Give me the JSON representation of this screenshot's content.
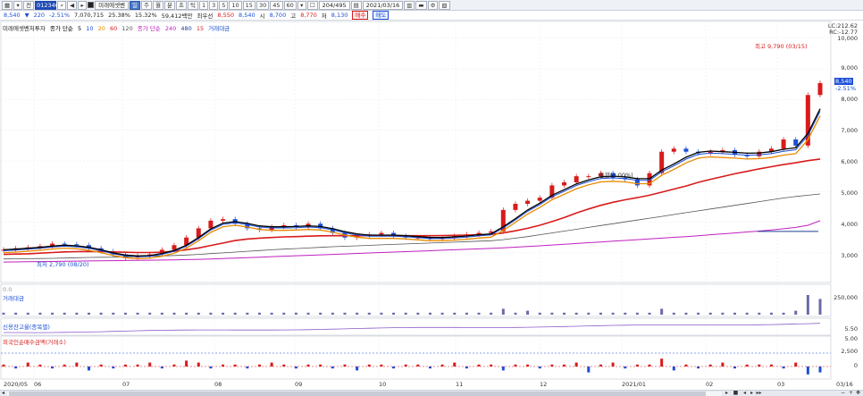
{
  "toolbar": {
    "code": "012340",
    "stock_name": "미래에셋벤",
    "periods": [
      "일",
      "주",
      "월",
      "분",
      "초",
      "틱"
    ],
    "minutes": [
      "1",
      "3",
      "5",
      "10",
      "15",
      "30",
      "45",
      "60"
    ],
    "count": "204/495",
    "date": "2021/03/16",
    "icons": [
      "grid-icon",
      "dropdown-icon",
      "arrow-icon",
      "search-icon",
      "settings-icon"
    ]
  },
  "info": {
    "price": "8,540",
    "change": "220",
    "change_pct": "-2.51%",
    "volume": "7,070,715",
    "ratio": "25.38%",
    "ratio2": "15.32%",
    "amount": "59,412백만",
    "basis": "최우선",
    "ask": "8,550",
    "bid": "8,540",
    "open_label": "시",
    "open": "8,700",
    "high_label": "고",
    "high": "8,770",
    "low_label": "저",
    "low": "8,130",
    "buy": "매수",
    "sell": "매도"
  },
  "legend_price": {
    "title": "미래에셋벤처투자",
    "ma_label": "종가 단순",
    "ma": [
      "5",
      "10",
      "20",
      "60",
      "120"
    ],
    "ma_colors": [
      "#000000",
      "#1c4fd8",
      "#e88a00",
      "#d81b1b",
      "#555555"
    ],
    "ma2_label": "종가 단순",
    "ma2": [
      "240",
      "480",
      "15"
    ],
    "ma2_colors": [
      "#c020c0",
      "#1c3f90",
      "#d81b1b"
    ],
    "vol_label": "거래대금"
  },
  "price_axis": {
    "labels": [
      "10,000",
      "9,000",
      "8,000",
      "7,000",
      "6,000",
      "5,000",
      "4,000",
      "3,000"
    ],
    "lc": "LC:212.62",
    "rc": "RC:-12.77",
    "current": "8,540",
    "current_pct": "-2.51%"
  },
  "annotations": {
    "high": "최고 9,790 (03/15)",
    "low": "최저 2,790 (08/20)",
    "event": "통합(0.00%)"
  },
  "panels": {
    "volume_tag": "0.0",
    "volume_title": "거래대금",
    "volume_axis": "250,000",
    "credit_title": "신용잔고율(종목별)",
    "credit_axis": [
      "5.50",
      "5.00"
    ],
    "foreign_title": "외국인순매수금액(거래소)",
    "foreign_axis": [
      "2,500",
      "0"
    ]
  },
  "dates": [
    "2020/05",
    "06",
    "07",
    "08",
    "09",
    "10",
    "11",
    "12",
    "2021/01",
    "02",
    "03",
    "03/16"
  ],
  "chart_data": {
    "type": "candlestick",
    "x_start": "2020/05",
    "x_end": "2021/03/16",
    "ylim": [
      2500,
      10200
    ],
    "close": [
      3100,
      3150,
      3180,
      3220,
      3300,
      3280,
      3250,
      3150,
      3050,
      2950,
      2850,
      2900,
      2950,
      3100,
      3250,
      3500,
      3800,
      4050,
      4100,
      3950,
      3800,
      3750,
      3850,
      3900,
      3850,
      3950,
      3800,
      3650,
      3500,
      3550,
      3600,
      3650,
      3550,
      3500,
      3500,
      3450,
      3500,
      3550,
      3600,
      3650,
      3700,
      4400,
      4600,
      4700,
      4800,
      5200,
      5300,
      5500,
      5500,
      5600,
      5450,
      5400,
      5200,
      5600,
      6300,
      6400,
      6300,
      6250,
      6300,
      6350,
      6200,
      6150,
      6300,
      6400,
      6700,
      6500,
      8150,
      8540
    ],
    "ma_black": [
      3100,
      3120,
      3150,
      3180,
      3220,
      3250,
      3230,
      3180,
      3100,
      3000,
      2930,
      2900,
      2910,
      2980,
      3080,
      3250,
      3500,
      3780,
      3970,
      4020,
      3960,
      3880,
      3850,
      3850,
      3860,
      3880,
      3860,
      3790,
      3690,
      3620,
      3580,
      3580,
      3580,
      3560,
      3530,
      3500,
      3500,
      3520,
      3550,
      3590,
      3620,
      3850,
      4120,
      4400,
      4620,
      4880,
      5060,
      5250,
      5380,
      5480,
      5500,
      5480,
      5420,
      5420,
      5700,
      5900,
      6120,
      6280,
      6320,
      6300,
      6280,
      6250,
      6260,
      6300,
      6380,
      6430,
      6900,
      7700
    ],
    "ma_red": [
      2950,
      2960,
      2970,
      2990,
      3010,
      3030,
      3040,
      3045,
      3040,
      3030,
      3020,
      3010,
      3010,
      3020,
      3050,
      3100,
      3160,
      3240,
      3320,
      3400,
      3450,
      3480,
      3500,
      3520,
      3530,
      3545,
      3555,
      3560,
      3560,
      3560,
      3560,
      3560,
      3560,
      3560,
      3560,
      3560,
      3565,
      3570,
      3580,
      3590,
      3600,
      3650,
      3720,
      3800,
      3900,
      4020,
      4150,
      4300,
      4430,
      4550,
      4650,
      4730,
      4800,
      4880,
      4980,
      5080,
      5180,
      5300,
      5400,
      5490,
      5580,
      5660,
      5740,
      5810,
      5880,
      5940,
      6010,
      6060
    ],
    "ma_gray": [
      2800,
      2805,
      2810,
      2815,
      2820,
      2830,
      2840,
      2850,
      2855,
      2860,
      2870,
      2880,
      2890,
      2900,
      2915,
      2930,
      2950,
      2975,
      3000,
      3025,
      3050,
      3075,
      3100,
      3120,
      3140,
      3160,
      3180,
      3200,
      3215,
      3230,
      3245,
      3260,
      3275,
      3290,
      3305,
      3320,
      3335,
      3350,
      3365,
      3380,
      3395,
      3430,
      3480,
      3530,
      3590,
      3650,
      3710,
      3770,
      3830,
      3890,
      3950,
      4010,
      4070,
      4130,
      4190,
      4250,
      4310,
      4370,
      4430,
      4490,
      4550,
      4610,
      4670,
      4730,
      4790,
      4840,
      4880,
      4920
    ],
    "ma_magenta": [
      2700,
      2705,
      2710,
      2715,
      2720,
      2725,
      2730,
      2735,
      2740,
      2745,
      2750,
      2755,
      2760,
      2765,
      2770,
      2780,
      2790,
      2800,
      2815,
      2830,
      2845,
      2860,
      2875,
      2890,
      2905,
      2920,
      2935,
      2950,
      2965,
      2980,
      2995,
      3010,
      3025,
      3040,
      3055,
      3070,
      3085,
      3100,
      3115,
      3130,
      3145,
      3165,
      3185,
      3205,
      3230,
      3255,
      3280,
      3305,
      3330,
      3355,
      3380,
      3405,
      3430,
      3455,
      3480,
      3505,
      3530,
      3560,
      3590,
      3620,
      3650,
      3680,
      3710,
      3745,
      3785,
      3830,
      3900,
      4050
    ]
  }
}
